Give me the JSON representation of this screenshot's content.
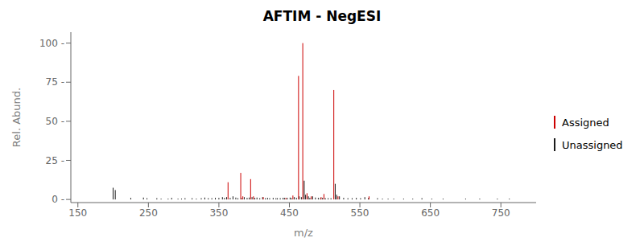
{
  "chart_data": {
    "type": "stem",
    "title": "AFTIM - NegESI",
    "x_label": "m/z",
    "y_label": "Rel. Abund.",
    "xlim": [
      140,
      800
    ],
    "ylim": [
      -2,
      107
    ],
    "xticks": [
      150,
      250,
      350,
      450,
      550,
      650,
      750
    ],
    "yticks": [
      {
        "value": 0,
        "label": "0 -"
      },
      {
        "value": 25,
        "label": "25 -"
      },
      {
        "value": 50,
        "label": "50 -"
      },
      {
        "value": 75,
        "label": "75 -"
      },
      {
        "value": 100,
        "label": "100 -"
      }
    ],
    "legend": "right",
    "series": [
      {
        "name": "Assigned",
        "color": "#cc0000",
        "x": [
          363,
          381,
          384,
          395,
          399,
          413,
          445,
          455,
          463,
          469,
          475,
          481,
          495,
          499,
          513,
          519,
          563
        ],
        "values": [
          11.0,
          17.0,
          2.0,
          13.0,
          2.0,
          1.5,
          1.0,
          2.5,
          79.0,
          100.0,
          4.0,
          2.0,
          1.5,
          3.5,
          70.0,
          2.0,
          2.0
        ]
      },
      {
        "name": "Unassigned",
        "color": "#1a1a1a",
        "x": [
          200,
          203,
          225,
          243,
          248,
          262,
          268,
          278,
          283,
          292,
          297,
          302,
          312,
          318,
          325,
          330,
          335,
          340,
          345,
          350,
          355,
          358,
          361,
          366,
          370,
          374,
          377,
          382,
          386,
          390,
          393,
          397,
          401,
          404,
          408,
          412,
          416,
          419,
          422,
          427,
          431,
          433,
          437,
          441,
          443,
          447,
          451,
          453,
          457,
          460,
          464,
          467,
          471,
          473,
          477,
          479,
          483,
          487,
          491,
          494,
          497,
          501,
          505,
          509,
          515,
          517,
          521,
          527,
          533,
          539,
          545,
          551,
          557,
          562,
          575,
          582,
          590,
          598,
          612,
          625,
          638,
          652,
          668,
          700,
          720,
          745,
          762
        ],
        "values": [
          7.5,
          6.0,
          1.0,
          1.2,
          0.8,
          0.8,
          0.5,
          0.5,
          1.0,
          0.5,
          0.5,
          0.8,
          0.8,
          0.5,
          0.8,
          1.2,
          0.8,
          0.8,
          1.0,
          1.0,
          1.5,
          1.0,
          1.5,
          1.0,
          2.0,
          1.2,
          0.8,
          1.0,
          1.5,
          1.0,
          1.2,
          1.5,
          1.0,
          1.2,
          0.8,
          1.5,
          0.8,
          1.0,
          0.8,
          1.0,
          0.8,
          0.8,
          0.8,
          1.0,
          1.0,
          1.0,
          1.2,
          0.8,
          1.5,
          1.0,
          2.0,
          1.5,
          12.0,
          3.0,
          2.0,
          1.0,
          2.0,
          1.2,
          1.0,
          0.8,
          1.0,
          0.8,
          0.8,
          0.8,
          10.0,
          3.0,
          2.0,
          1.0,
          0.8,
          0.8,
          1.0,
          0.8,
          1.5,
          0.8,
          0.8,
          0.5,
          0.5,
          0.5,
          0.5,
          0.5,
          0.8,
          0.5,
          0.5,
          0.5,
          0.5,
          0.5,
          0.5
        ]
      }
    ]
  }
}
